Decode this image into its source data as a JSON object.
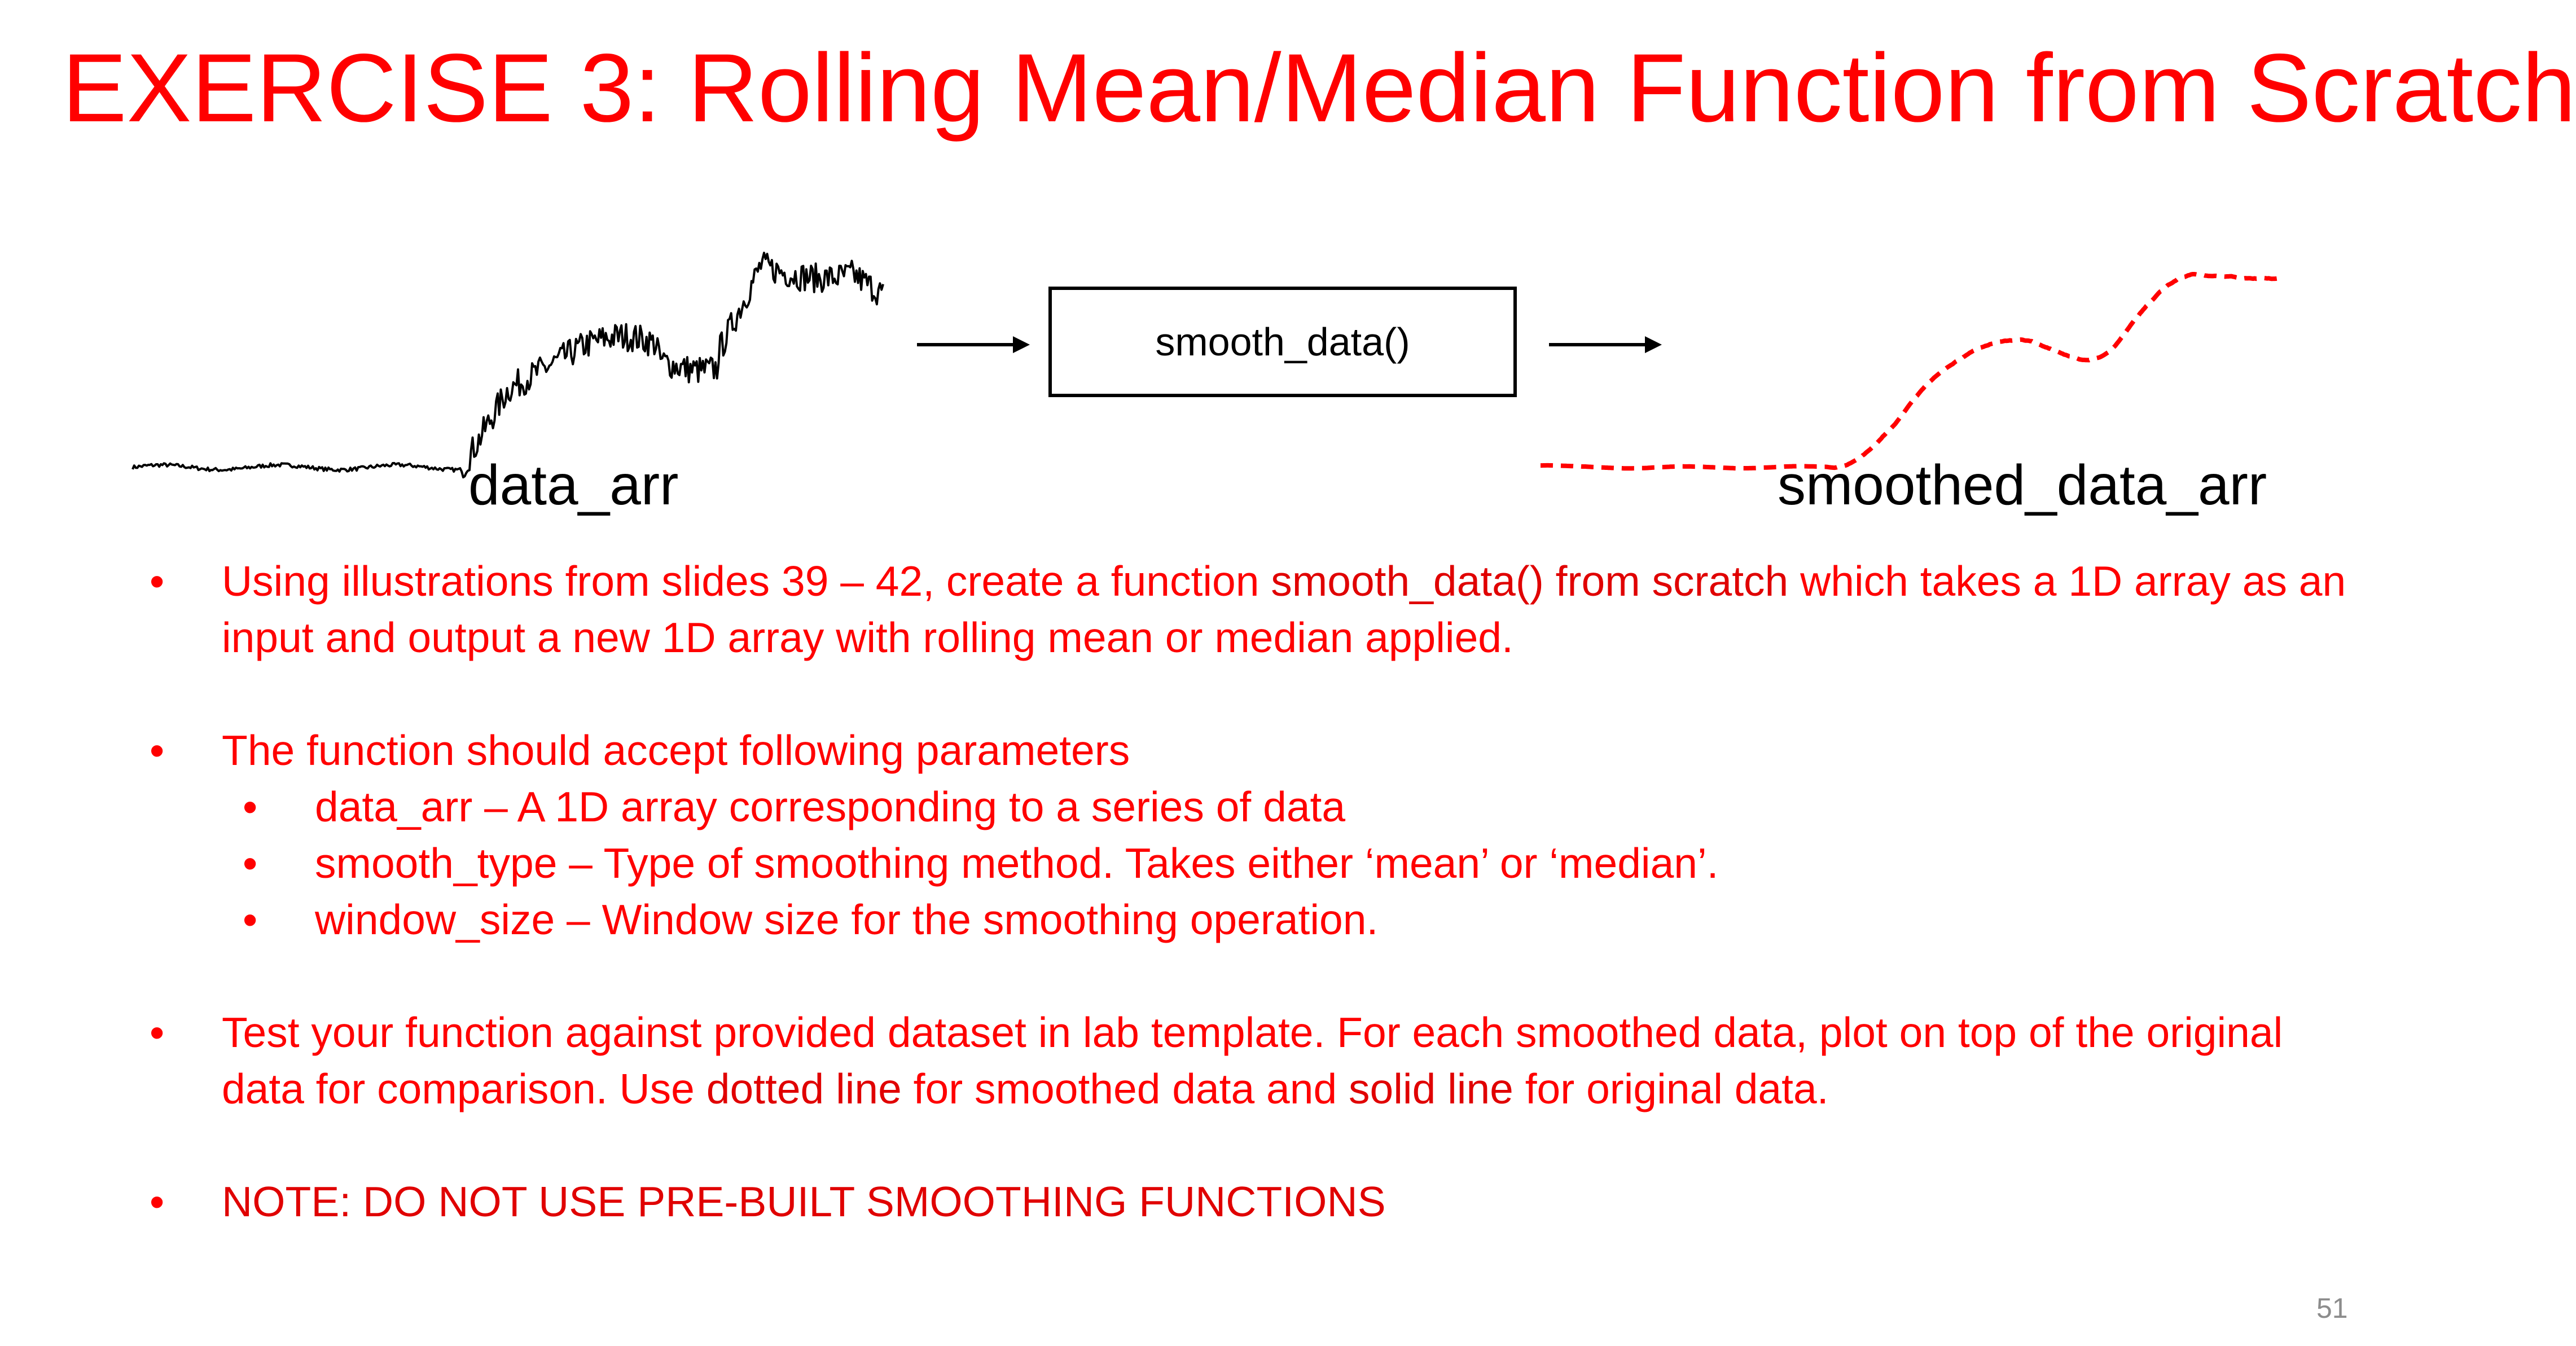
{
  "title": "EXERCISE 3: Rolling Mean/Median Function from Scratch",
  "diagram": {
    "input_label": "data_arr",
    "function_label": "smooth_data()",
    "output_label": "smoothed_data_arr",
    "colors": {
      "input_line": "#000000",
      "output_line": "#ff0000"
    }
  },
  "bullets": {
    "b1": {
      "pre": "Using illustrations from slides 39 – 42, create a function ",
      "highlight": "smooth_data() from scratch",
      "post": " which takes a 1D array as an",
      "line2": "input and output a new 1D array with rolling mean or median applied."
    },
    "b2": {
      "text": "The function should accept following parameters",
      "sub": [
        "data_arr – A 1D array corresponding to a series of data",
        "smooth_type – Type of smoothing method. Takes either ‘mean’ or ‘median’.",
        "window_size – Window size for the smoothing operation."
      ]
    },
    "b3": {
      "line1": "Test your function against provided dataset in lab template. For each smoothed data, plot on top of the original",
      "line2_pre": "data for comparison. Use ",
      "hl1": "dotted line",
      "line2_mid": " for smoothed data and ",
      "hl2": "solid line",
      "line2_post": " for original data."
    },
    "b4": {
      "text": "NOTE: DO NOT USE PRE-BUILT SMOOTHING FUNCTIONS"
    },
    "bullet_symbol": "•"
  },
  "slide_number": "51",
  "colors": {
    "title": "#ff0000",
    "body_text": "#ff0000",
    "page_number": "#8c8c8c"
  }
}
